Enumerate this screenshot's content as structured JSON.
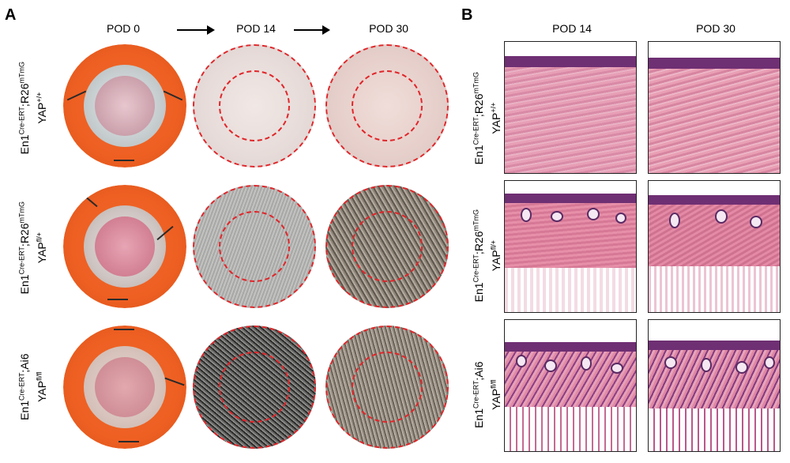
{
  "panels": {
    "a": {
      "letter": "A",
      "columns": [
        "POD 0",
        "POD 14",
        "POD 30"
      ],
      "rows": [
        {
          "main": "En1",
          "sup1": "Cre-ERT",
          "mid": ";R26",
          "sup2": "mTmG",
          "line2": "YAP",
          "sup3": "+/+"
        },
        {
          "main": "En1",
          "sup1": "Cre-ERT",
          "mid": ";R26",
          "sup2": "mTmG",
          "line2": "YAP",
          "sup3": "fl/+"
        },
        {
          "main": "En1",
          "sup1": "Cre-ERT",
          "mid": ";Ai6",
          "sup2": "",
          "line2": "YAP",
          "sup3": "fl/fl"
        }
      ]
    },
    "b": {
      "letter": "B",
      "columns": [
        "POD 14",
        "POD 30"
      ],
      "rows": [
        {
          "main": "En1",
          "sup1": "Cre-ERT",
          "mid": ";R26",
          "sup2": "mTmG",
          "line2": "YAP",
          "sup3": "+/+"
        },
        {
          "main": "En1",
          "sup1": "Cre-ERT",
          "mid": ";R26",
          "sup2": "mTmG",
          "line2": "YAP",
          "sup3": "fl/+"
        },
        {
          "main": "En1",
          "sup1": "Cre-ERT",
          "mid": ";Ai6",
          "sup2": "",
          "line2": "YAP",
          "sup3": "fl/fl"
        }
      ]
    }
  },
  "colors": {
    "splint": "#ee5f22",
    "dashed_ring": "#e0262a",
    "he_pink": "#e69ab4",
    "he_purple": "#7b3a7e"
  }
}
